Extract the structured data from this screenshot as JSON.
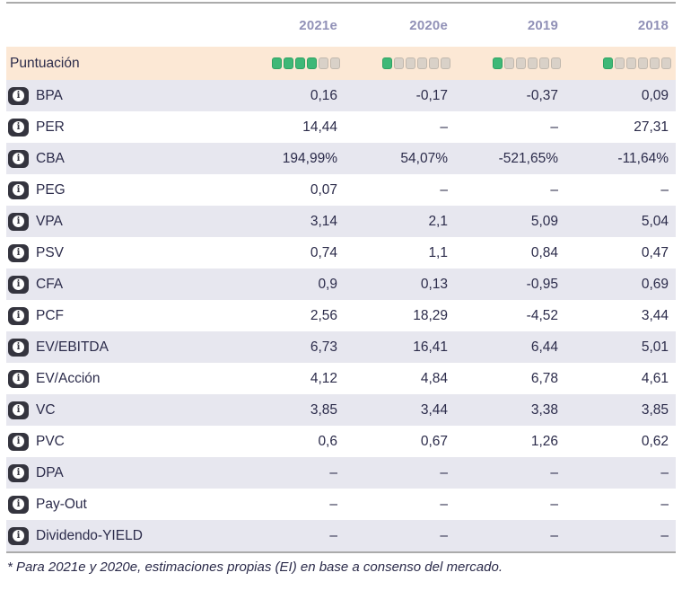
{
  "table": {
    "columns": [
      "2021e",
      "2020e",
      "2019",
      "2018"
    ],
    "score_row": {
      "label": "Puntuación",
      "max_dots": 6,
      "ratings": [
        4,
        1,
        1,
        1
      ]
    },
    "rows": [
      {
        "label": "BPA",
        "values": [
          "0,16",
          "-0,17",
          "-0,37",
          "0,09"
        ]
      },
      {
        "label": "PER",
        "values": [
          "14,44",
          "–",
          "–",
          "27,31"
        ]
      },
      {
        "label": "CBA",
        "values": [
          "194,99%",
          "54,07%",
          "-521,65%",
          "-11,64%"
        ]
      },
      {
        "label": "PEG",
        "values": [
          "0,07",
          "–",
          "–",
          "–"
        ]
      },
      {
        "label": "VPA",
        "values": [
          "3,14",
          "2,1",
          "5,09",
          "5,04"
        ]
      },
      {
        "label": "PSV",
        "values": [
          "0,74",
          "1,1",
          "0,84",
          "0,47"
        ]
      },
      {
        "label": "CFA",
        "values": [
          "0,9",
          "0,13",
          "-0,95",
          "0,69"
        ]
      },
      {
        "label": "PCF",
        "values": [
          "2,56",
          "18,29",
          "-4,52",
          "3,44"
        ]
      },
      {
        "label": "EV/EBITDA",
        "values": [
          "6,73",
          "16,41",
          "6,44",
          "5,01"
        ]
      },
      {
        "label": "EV/Acción",
        "values": [
          "4,12",
          "4,84",
          "6,78",
          "4,61"
        ]
      },
      {
        "label": "VC",
        "values": [
          "3,85",
          "3,44",
          "3,38",
          "3,85"
        ]
      },
      {
        "label": "PVC",
        "values": [
          "0,6",
          "0,67",
          "1,26",
          "0,62"
        ]
      },
      {
        "label": "DPA",
        "values": [
          "–",
          "–",
          "–",
          "–"
        ]
      },
      {
        "label": "Pay-Out",
        "values": [
          "–",
          "–",
          "–",
          "–"
        ]
      },
      {
        "label": "Dividendo-YIELD",
        "values": [
          "–",
          "–",
          "–",
          "–"
        ]
      }
    ],
    "footnote": "* Para 2021e y 2020e, estimaciones propias (EI) en base a consenso del mercado.",
    "icons": {
      "info": "i"
    },
    "colors": {
      "score_row_bg": "#fce8d5",
      "alt_row_bg": "#e7e7ef",
      "header_text": "#9191b7",
      "body_text": "#2b2b4a",
      "dot_active": "#3eb877",
      "dot_inactive": "#d9d1c8",
      "info_icon_bg": "#34343e",
      "rule": "#ababab"
    }
  }
}
